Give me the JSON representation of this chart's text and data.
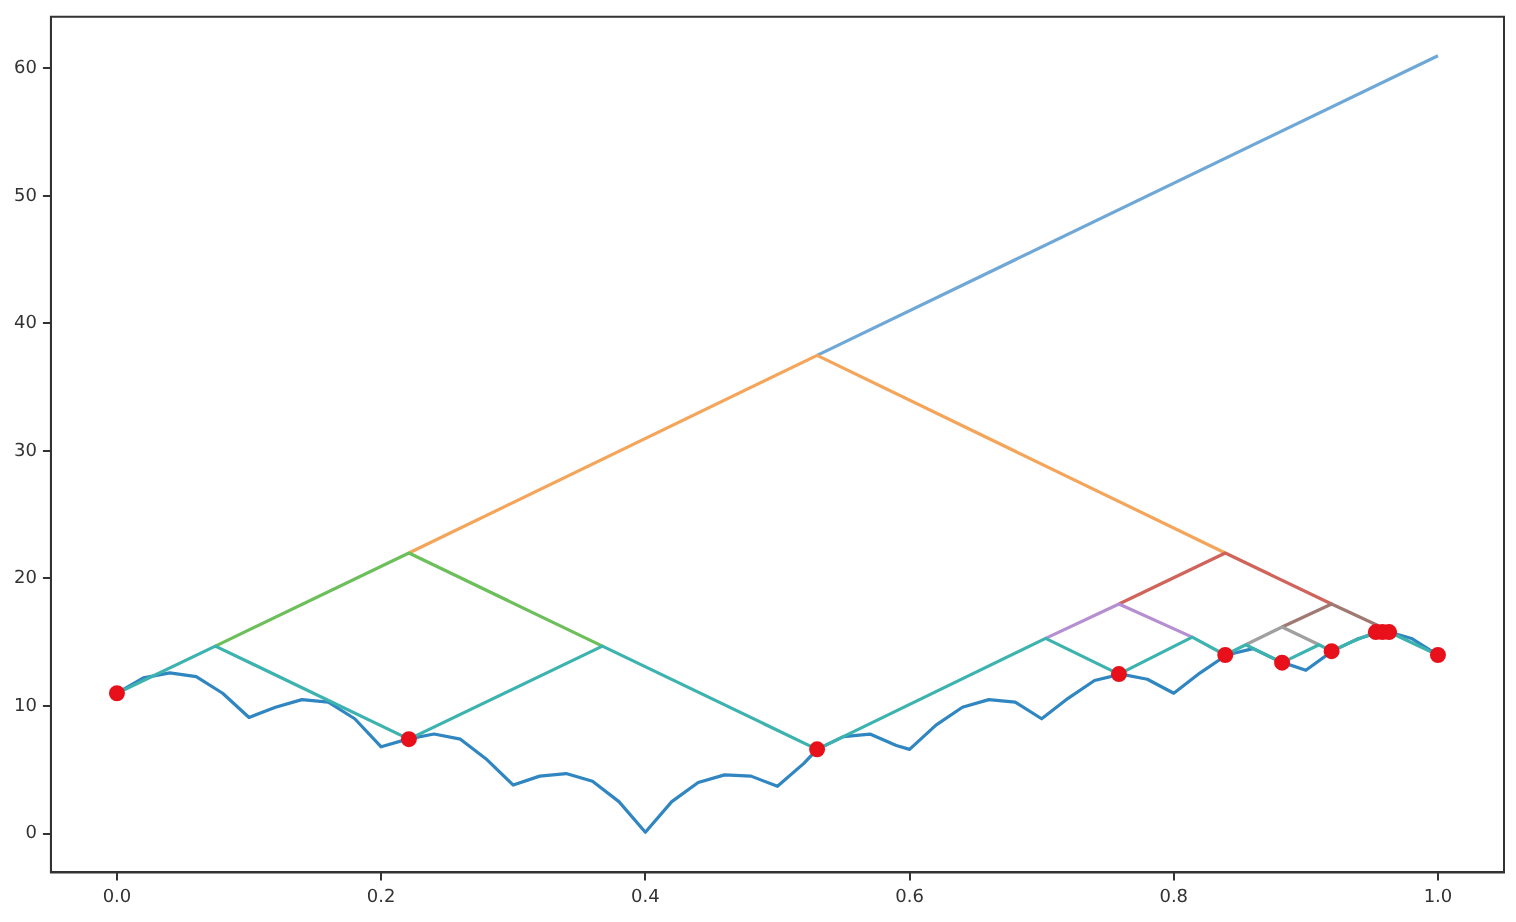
{
  "chart_data": {
    "type": "line",
    "xlim": [
      -0.05,
      1.05
    ],
    "xticks": [
      {
        "value": 0,
        "label": "0.0"
      },
      {
        "value": 0.2,
        "label": "0.2"
      },
      {
        "value": 0.4,
        "label": "0.4"
      },
      {
        "value": 0.6,
        "label": "0.6"
      },
      {
        "value": 0.8,
        "label": "0.8"
      },
      {
        "value": 1,
        "label": "1.0"
      }
    ],
    "ylim": [
      -3.05,
      64.05
    ],
    "yticks": [
      0,
      10,
      20,
      30,
      40,
      50,
      60
    ],
    "grid": false,
    "legend": false,
    "marker": "none",
    "series": [
      {
        "color": "#2f86c0",
        "x": [
          0,
          0.02,
          0.04,
          0.06,
          0.08,
          0.1,
          0.12,
          0.14,
          0.16,
          0.18,
          0.2,
          0.22,
          0.24,
          0.26,
          0.28,
          0.3,
          0.32,
          0.34,
          0.36,
          0.38,
          0.4,
          0.42,
          0.44,
          0.46,
          0.48,
          0.5,
          0.52,
          0.53,
          0.55,
          0.57,
          0.59,
          0.6,
          0.62,
          0.64,
          0.66,
          0.68,
          0.7,
          0.72,
          0.74,
          0.76,
          0.78,
          0.8,
          0.82,
          0.84,
          0.86,
          0.88,
          0.9,
          0.92,
          0.94,
          0.96,
          0.98,
          1.0
        ],
        "values": [
          11.0,
          12.2,
          12.6,
          12.3,
          11.0,
          9.1,
          9.9,
          10.5,
          10.3,
          9.0,
          6.8,
          7.4,
          7.8,
          7.4,
          5.8,
          3.8,
          4.5,
          4.7,
          4.1,
          2.5,
          0.1,
          2.5,
          4.0,
          4.6,
          4.5,
          3.7,
          5.5,
          6.6,
          7.6,
          7.8,
          6.9,
          6.6,
          8.5,
          9.9,
          10.5,
          10.3,
          9.0,
          10.6,
          12.0,
          12.5,
          12.1,
          11.0,
          12.6,
          14.0,
          14.5,
          13.5,
          12.8,
          14.3,
          15.3,
          15.9,
          15.3,
          14.0
        ]
      },
      {
        "type": "line",
        "color": "#6fa8d6",
        "x": [
          0.53,
          1.0
        ],
        "values": [
          37.5,
          61.0
        ]
      },
      {
        "type": "line",
        "color": "#f5a55a",
        "x": [
          0.221,
          0.53,
          0.839
        ],
        "values": [
          22.0,
          37.5,
          22.0
        ]
      },
      {
        "type": "line",
        "color": "#6cbf5a",
        "x": [
          0.0745,
          0.221,
          0.3675
        ],
        "values": [
          14.7,
          22.0,
          14.7
        ]
      },
      {
        "type": "line",
        "color": "#d0635a",
        "x": [
          0.7585,
          0.839,
          0.9195
        ],
        "values": [
          18.0,
          22.0,
          18.0
        ]
      },
      {
        "type": "line",
        "color": "#b58fd0",
        "x": [
          0.703,
          0.7585,
          0.814
        ],
        "values": [
          15.3,
          18.0,
          15.4
        ]
      },
      {
        "type": "line",
        "color": "#a07a72",
        "x": [
          0.882,
          0.9195,
          0.957
        ],
        "values": [
          16.2,
          18.0,
          16.2
        ]
      },
      {
        "type": "line",
        "color": "#a0a0a0",
        "x": [
          0.8545,
          0.882,
          0.91
        ],
        "values": [
          14.8,
          16.2,
          14.8
        ]
      },
      {
        "type": "line",
        "color": "#3db3b0",
        "x": [
          0,
          0.0745,
          0.221,
          0.3675,
          0.53,
          0.703,
          0.7585,
          0.814,
          0.839,
          0.8545,
          0.882,
          0.91,
          0.9195,
          0.934,
          0.953,
          0.958,
          0.963,
          1.0
        ],
        "values": [
          11.0,
          14.7,
          7.4,
          14.7,
          6.6,
          15.3,
          12.5,
          15.4,
          14.0,
          14.8,
          13.4,
          14.8,
          14.3,
          15.0,
          15.8,
          15.9,
          15.8,
          14.0
        ]
      },
      {
        "type": "scatter",
        "marker": "circle",
        "color": "#e8101a",
        "x": [
          0,
          0.221,
          0.53,
          0.7585,
          0.839,
          0.882,
          0.9195,
          0.953,
          0.958,
          0.963,
          1.0
        ],
        "values": [
          11.0,
          7.4,
          6.6,
          12.5,
          14.0,
          13.4,
          14.3,
          15.8,
          15.8,
          15.8,
          14.0
        ]
      }
    ]
  }
}
